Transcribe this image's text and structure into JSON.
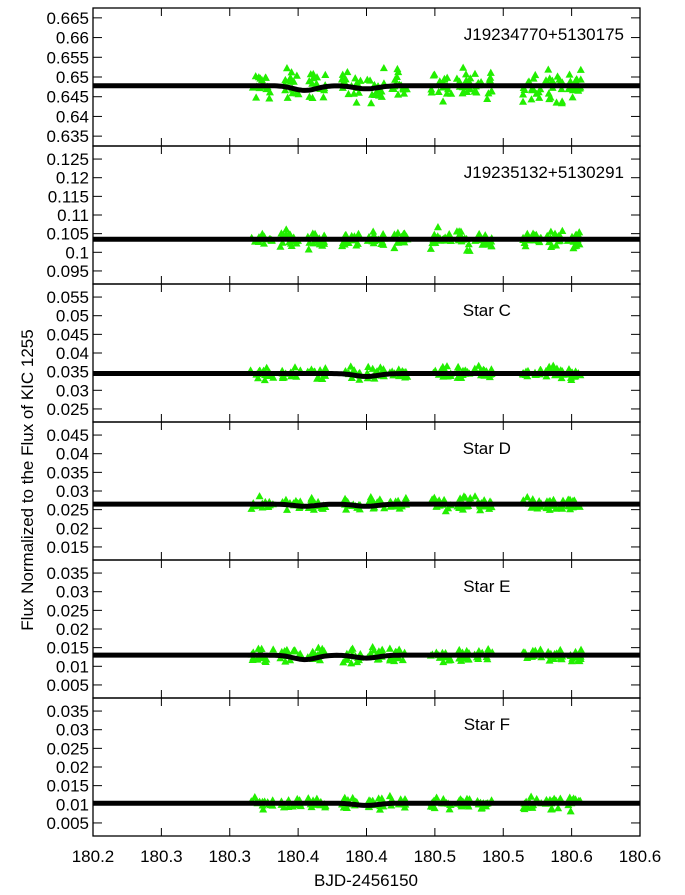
{
  "chart_data": {
    "type": "scatter",
    "xlabel": "BJD-2456150",
    "ylabel": "Flux Normalized to the Flux of KIC 1255",
    "xlim": [
      180.2,
      180.6
    ],
    "x_tick_labels": [
      "180.2",
      "180.3",
      "180.3",
      "180.4",
      "180.4",
      "180.5",
      "180.5",
      "180.6",
      "180.6"
    ],
    "grid": false,
    "legend": "none",
    "colors": {
      "points": "#22ee00",
      "model": "#000000",
      "axes": "#000000"
    },
    "panels": [
      {
        "label": "J19234770+5130175",
        "ylim": [
          0.6325,
          0.6675
        ],
        "y_ticks": [
          0.635,
          0.64,
          0.645,
          0.65,
          0.655,
          0.66,
          0.665
        ],
        "y_tick_labels": [
          "0.635",
          "0.64",
          "0.645",
          "0.65",
          "0.655",
          "0.66",
          "0.665"
        ],
        "model_level": 0.6478,
        "model_dips": [
          {
            "x": 180.355,
            "depth": 0.0012
          },
          {
            "x": 180.4,
            "depth": 0.0008
          }
        ],
        "scatter": 0.0035
      },
      {
        "label": "J19235132+5130291",
        "ylim": [
          0.0915,
          0.1285
        ],
        "y_ticks": [
          0.095,
          0.1,
          0.105,
          0.11,
          0.115,
          0.12,
          0.125
        ],
        "y_tick_labels": [
          "0.095",
          "0.1",
          "0.105",
          "0.11",
          "0.115",
          "0.12",
          "0.125"
        ],
        "model_level": 0.1035,
        "model_dips": [],
        "scatter": 0.0022
      },
      {
        "label": "Star C",
        "ylim": [
          0.0215,
          0.0585
        ],
        "y_ticks": [
          0.025,
          0.03,
          0.035,
          0.04,
          0.045,
          0.05,
          0.055
        ],
        "y_tick_labels": [
          "0.025",
          "0.03",
          "0.035",
          "0.04",
          "0.045",
          "0.05",
          "0.055"
        ],
        "model_level": 0.0345,
        "model_dips": [
          {
            "x": 180.4,
            "depth": 0.0008
          }
        ],
        "scatter": 0.0015
      },
      {
        "label": "Star D",
        "ylim": [
          0.0115,
          0.0485
        ],
        "y_ticks": [
          0.015,
          0.02,
          0.025,
          0.03,
          0.035,
          0.04,
          0.045
        ],
        "y_tick_labels": [
          "0.015",
          "0.02",
          "0.025",
          "0.03",
          "0.035",
          "0.04",
          "0.045"
        ],
        "model_level": 0.0265,
        "model_dips": [
          {
            "x": 180.355,
            "depth": 0.0006
          },
          {
            "x": 180.4,
            "depth": 0.0006
          }
        ],
        "scatter": 0.0015
      },
      {
        "label": "Star E",
        "ylim": [
          0.0015,
          0.0385
        ],
        "y_ticks": [
          0.005,
          0.01,
          0.015,
          0.02,
          0.025,
          0.03,
          0.035
        ],
        "y_tick_labels": [
          "0.005",
          "0.01",
          "0.015",
          "0.02",
          "0.025",
          "0.03",
          "0.035"
        ],
        "model_level": 0.013,
        "model_dips": [
          {
            "x": 180.355,
            "depth": 0.0012
          },
          {
            "x": 180.4,
            "depth": 0.0008
          }
        ],
        "scatter": 0.0017
      },
      {
        "label": "Star F",
        "ylim": [
          0.0015,
          0.0385
        ],
        "y_ticks": [
          0.005,
          0.01,
          0.015,
          0.02,
          0.025,
          0.03,
          0.035
        ],
        "y_tick_labels": [
          "0.005",
          "0.01",
          "0.015",
          "0.02",
          "0.025",
          "0.03",
          "0.035"
        ],
        "model_level": 0.0103,
        "model_dips": [
          {
            "x": 180.4,
            "depth": 0.0006
          }
        ],
        "scatter": 0.0015
      }
    ],
    "observation_groups": [
      {
        "start": 180.315,
        "end": 180.332
      },
      {
        "start": 180.337,
        "end": 180.352
      },
      {
        "start": 180.357,
        "end": 180.37
      },
      {
        "start": 180.382,
        "end": 180.396
      },
      {
        "start": 180.4,
        "end": 180.413
      },
      {
        "start": 180.417,
        "end": 180.43
      },
      {
        "start": 180.447,
        "end": 180.462
      },
      {
        "start": 180.466,
        "end": 180.476
      },
      {
        "start": 180.479,
        "end": 180.492
      },
      {
        "start": 180.514,
        "end": 180.528
      },
      {
        "start": 180.531,
        "end": 180.544
      },
      {
        "start": 180.547,
        "end": 180.557
      }
    ]
  }
}
